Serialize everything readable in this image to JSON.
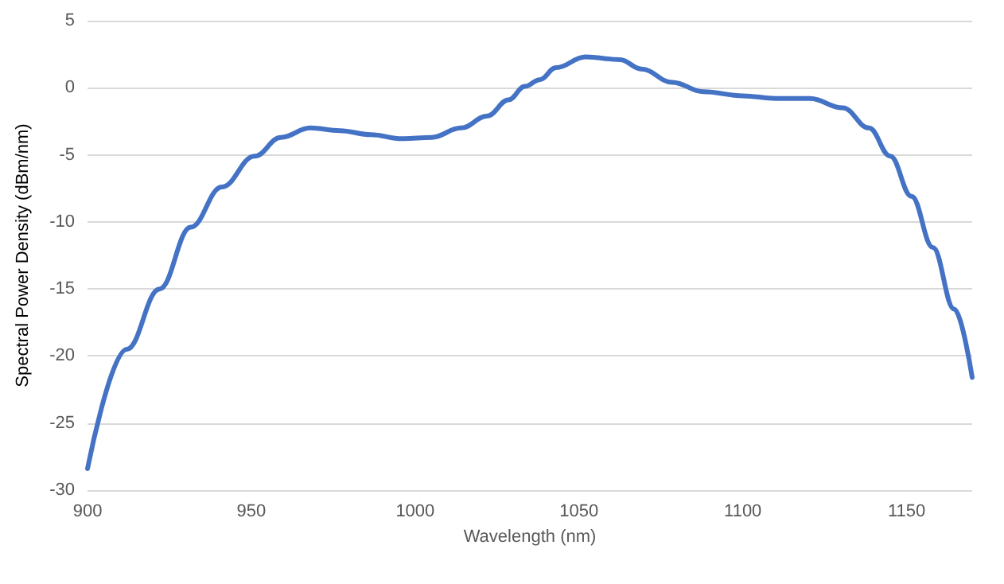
{
  "chart_data": {
    "type": "line",
    "xlabel": "Wavelength (nm)",
    "ylabel": "Spectral Power Density (dBm/nm)",
    "x": [
      900,
      912,
      922,
      931.5,
      941,
      951,
      959,
      968,
      977,
      986.5,
      996,
      1005,
      1014,
      1022,
      1028.5,
      1033.5,
      1038,
      1043,
      1052,
      1062.5,
      1069,
      1078.5,
      1088,
      1100,
      1110,
      1120.5,
      1130.5,
      1138.5,
      1145,
      1151.5,
      1158,
      1164.5,
      1170
    ],
    "series": [
      {
        "color": "#4472c4",
        "values": [
          -28.4,
          -19.5,
          -15,
          -10.4,
          -7.4,
          -5.1,
          -3.7,
          -3,
          -3.2,
          -3.5,
          -3.8,
          -3.7,
          -3,
          -2.1,
          -0.9,
          0.1,
          0.6,
          1.5,
          2.3,
          2.1,
          1.4,
          0.4,
          -0.3,
          -0.6,
          -0.8,
          -0.8,
          -1.5,
          -3,
          -5.1,
          -8.1,
          -11.9,
          -16.5,
          -21.6
        ]
      }
    ],
    "xlim": [
      900,
      1170
    ],
    "xticks": [
      900,
      950,
      1000,
      1050,
      1100,
      1150
    ],
    "ylim": [
      -30,
      5
    ],
    "yticks": [
      -30,
      -25,
      -20,
      -15,
      -10,
      -5,
      0,
      5
    ],
    "grid": "y",
    "marker": "none",
    "line_style": "solid"
  }
}
